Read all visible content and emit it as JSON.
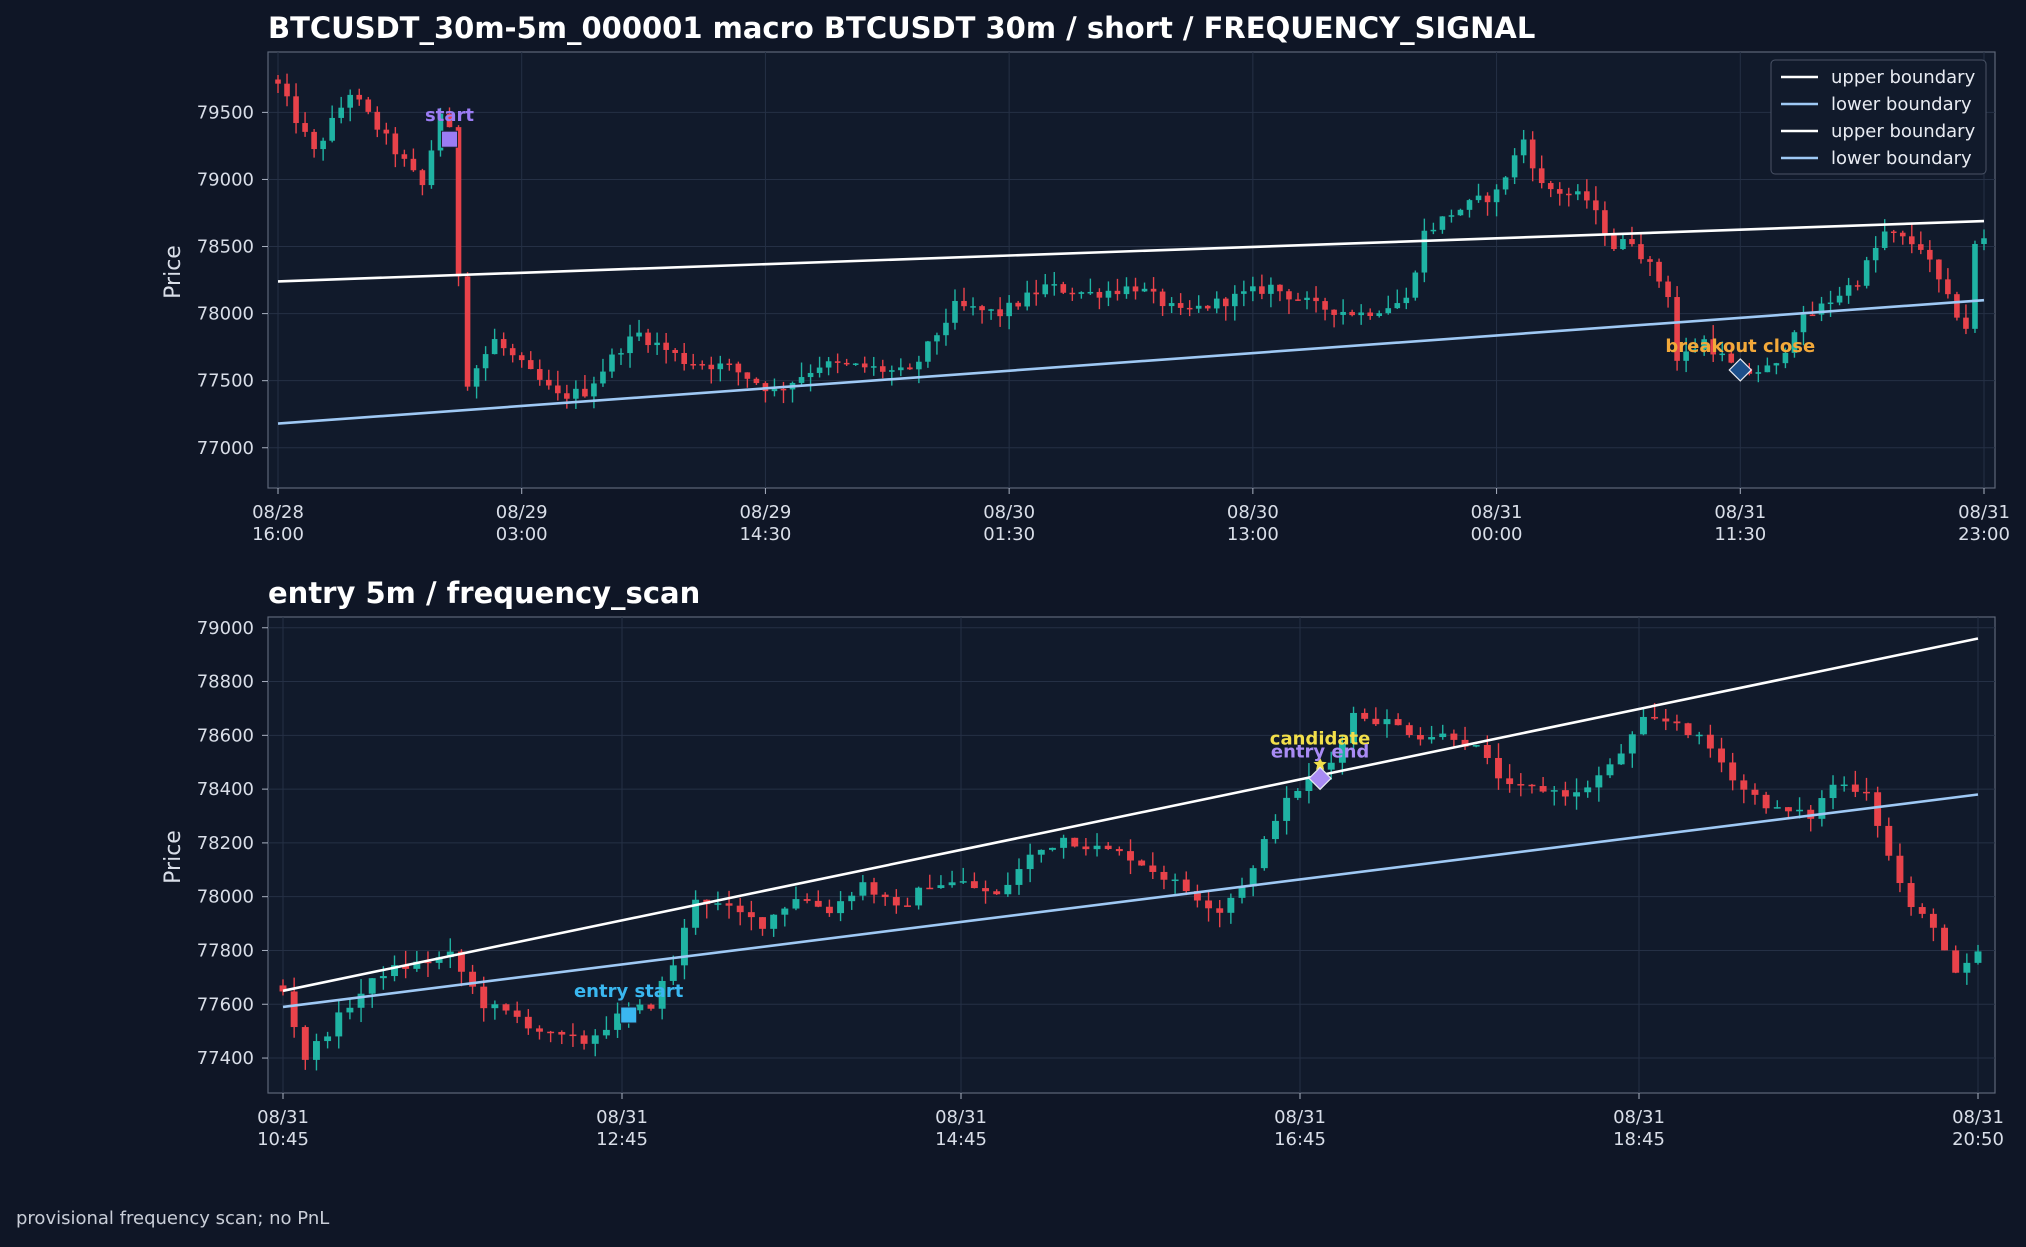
{
  "footnote": "provisional frequency scan; no PnL",
  "colors": {
    "background": "#0f1626",
    "axes_bg": "#111a2b",
    "grid": "#253045",
    "up_candle": "#1fb3a3",
    "down_candle": "#e8424a",
    "upper_boundary": "#ffffff",
    "lower_boundary": "#9fc9f5",
    "start_marker": "#9b7cf4",
    "entry_start_marker": "#3ab7f0",
    "entry_end_marker": "#a98bf4",
    "candidate_text": "#f2df4a",
    "breakout_text": "#f3a93a"
  },
  "chart_data": [
    {
      "type": "candlestick",
      "title": "BTCUSDT_30m-5m_000001 macro BTCUSDT 30m / short / FREQUENCY_SIGNAL",
      "ylabel": "Price",
      "xlabel": "",
      "interval": "30m",
      "x_range": [
        "08/28 16:00",
        "08/31 23:00"
      ],
      "ylim": [
        76700,
        79950
      ],
      "yticks": [
        77000,
        77500,
        78000,
        78500,
        79000,
        79500
      ],
      "xticks": [
        {
          "line1": "08/28",
          "line2": "16:00"
        },
        {
          "line1": "08/29",
          "line2": "03:00"
        },
        {
          "line1": "08/29",
          "line2": "14:30"
        },
        {
          "line1": "08/30",
          "line2": "01:30"
        },
        {
          "line1": "08/30",
          "line2": "13:00"
        },
        {
          "line1": "08/31",
          "line2": "00:00"
        },
        {
          "line1": "08/31",
          "line2": "11:30"
        },
        {
          "line1": "08/31",
          "line2": "23:00"
        }
      ],
      "grid": true,
      "legend_position": "top-right",
      "legend": [
        "upper boundary",
        "lower boundary",
        "upper boundary",
        "lower boundary"
      ],
      "upper_boundary": {
        "start": 78240,
        "end": 78690
      },
      "lower_boundary": {
        "start": 77180,
        "end": 78100
      },
      "price_path": [
        [
          0,
          79700
        ],
        [
          4,
          79200
        ],
        [
          8,
          79650
        ],
        [
          12,
          79300
        ],
        [
          16,
          78950
        ],
        [
          18,
          79500
        ],
        [
          19,
          79350
        ],
        [
          20,
          78300
        ],
        [
          21,
          77500
        ],
        [
          24,
          77800
        ],
        [
          28,
          77550
        ],
        [
          31,
          77380
        ],
        [
          34,
          77420
        ],
        [
          38,
          77750
        ],
        [
          40,
          77850
        ],
        [
          45,
          77650
        ],
        [
          50,
          77600
        ],
        [
          55,
          77420
        ],
        [
          60,
          77620
        ],
        [
          65,
          77600
        ],
        [
          70,
          77550
        ],
        [
          75,
          78050
        ],
        [
          80,
          78000
        ],
        [
          85,
          78200
        ],
        [
          90,
          78150
        ],
        [
          95,
          78200
        ],
        [
          100,
          78000
        ],
        [
          105,
          78100
        ],
        [
          110,
          78200
        ],
        [
          115,
          78050
        ],
        [
          120,
          78000
        ],
        [
          125,
          78100
        ],
        [
          127,
          78600
        ],
        [
          130,
          78750
        ],
        [
          135,
          78900
        ],
        [
          138,
          79300
        ],
        [
          140,
          78950
        ],
        [
          145,
          78850
        ],
        [
          148,
          78500
        ],
        [
          150,
          78550
        ],
        [
          152,
          78350
        ],
        [
          154,
          78150
        ],
        [
          155,
          77650
        ],
        [
          158,
          77800
        ],
        [
          162,
          77550
        ],
        [
          166,
          77600
        ],
        [
          168,
          77900
        ],
        [
          172,
          78100
        ],
        [
          175,
          78250
        ],
        [
          178,
          78600
        ],
        [
          182,
          78500
        ],
        [
          185,
          78100
        ],
        [
          187,
          77900
        ],
        [
          188,
          78500
        ],
        [
          189,
          78550
        ]
      ],
      "annotations": [
        {
          "label": "start",
          "index": 19,
          "price": 79300,
          "marker": "square",
          "color": "#9b7cf4",
          "text_color": "#9b7cf4"
        },
        {
          "label": "breakout close",
          "index": 162,
          "price": 77580,
          "marker": "diamond",
          "color": "#1d4f8a",
          "text_color": "#f3a93a"
        }
      ]
    },
    {
      "type": "candlestick",
      "title": "entry 5m / frequency_scan",
      "ylabel": "Price",
      "xlabel": "",
      "interval": "5m",
      "x_range": [
        "08/31 10:45",
        "08/31 20:50"
      ],
      "ylim": [
        77270,
        79040
      ],
      "yticks": [
        77400,
        77600,
        77800,
        78000,
        78200,
        78400,
        78600,
        78800,
        79000
      ],
      "xticks": [
        {
          "line1": "08/31",
          "line2": "10:45"
        },
        {
          "line1": "08/31",
          "line2": "12:45"
        },
        {
          "line1": "08/31",
          "line2": "14:45"
        },
        {
          "line1": "08/31",
          "line2": "16:45"
        },
        {
          "line1": "08/31",
          "line2": "18:45"
        },
        {
          "line1": "08/31",
          "line2": "20:50"
        }
      ],
      "grid": true,
      "upper_boundary": {
        "start": 77650,
        "end": 78960
      },
      "lower_boundary": {
        "start": 77590,
        "end": 78380
      },
      "price_path": [
        [
          0,
          77650
        ],
        [
          2,
          77400
        ],
        [
          4,
          77500
        ],
        [
          6,
          77600
        ],
        [
          9,
          77720
        ],
        [
          12,
          77750
        ],
        [
          15,
          77780
        ],
        [
          18,
          77600
        ],
        [
          21,
          77550
        ],
        [
          24,
          77480
        ],
        [
          27,
          77460
        ],
        [
          30,
          77550
        ],
        [
          33,
          77600
        ],
        [
          35,
          77750
        ],
        [
          37,
          78000
        ],
        [
          40,
          77950
        ],
        [
          43,
          77900
        ],
        [
          46,
          78000
        ],
        [
          49,
          77950
        ],
        [
          52,
          78050
        ],
        [
          55,
          77950
        ],
        [
          58,
          78050
        ],
        [
          61,
          78050
        ],
        [
          64,
          78000
        ],
        [
          67,
          78150
        ],
        [
          70,
          78220
        ],
        [
          73,
          78180
        ],
        [
          76,
          78150
        ],
        [
          80,
          78050
        ],
        [
          84,
          77950
        ],
        [
          87,
          78100
        ],
        [
          89,
          78300
        ],
        [
          91,
          78400
        ],
        [
          94,
          78500
        ],
        [
          96,
          78680
        ],
        [
          99,
          78650
        ],
        [
          102,
          78600
        ],
        [
          105,
          78600
        ],
        [
          107,
          78550
        ],
        [
          110,
          78400
        ],
        [
          113,
          78400
        ],
        [
          116,
          78380
        ],
        [
          119,
          78480
        ],
        [
          122,
          78650
        ],
        [
          125,
          78650
        ],
        [
          128,
          78550
        ],
        [
          131,
          78400
        ],
        [
          134,
          78320
        ],
        [
          137,
          78300
        ],
        [
          139,
          78420
        ],
        [
          142,
          78400
        ],
        [
          144,
          78150
        ],
        [
          146,
          77950
        ],
        [
          148,
          77900
        ],
        [
          150,
          77700
        ],
        [
          152,
          77780
        ]
      ],
      "annotations": [
        {
          "label": "entry start",
          "index": 31,
          "price": 77560,
          "marker": "square",
          "color": "#3ab7f0",
          "text_color": "#3ab7f0"
        },
        {
          "label": "candidate",
          "index": 93,
          "price": 78440,
          "marker": "star",
          "color": "#f2df4a",
          "text_color": "#f2df4a"
        },
        {
          "label": "entry end",
          "index": 93,
          "price": 78440,
          "marker": "diamond",
          "color": "#a98bf4",
          "text_color": "#a98bf4"
        }
      ]
    }
  ]
}
